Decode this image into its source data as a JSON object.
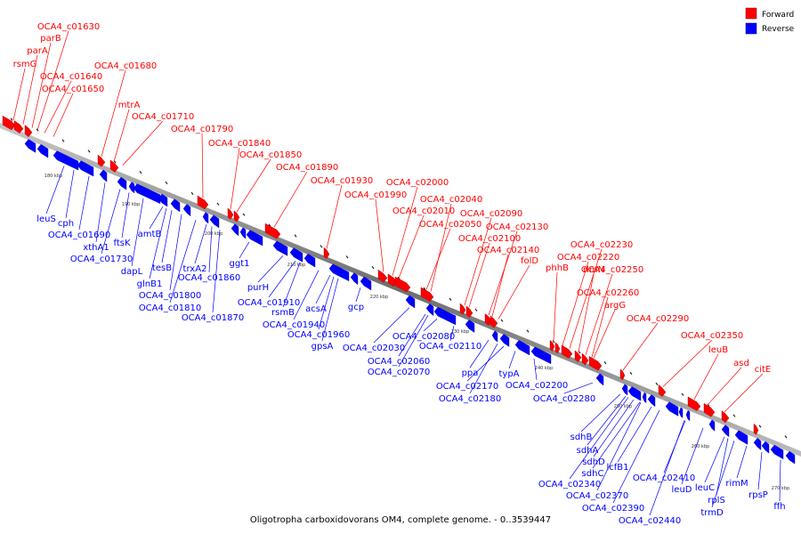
{
  "caption": "Oligotropha carboxidovorans OM4, complete genome. - 0..3539447",
  "colors": {
    "forward": "#ff0000",
    "reverse": "#0000ff",
    "backbone": "#808080"
  },
  "legend": [
    {
      "key": "forward",
      "label": "Forward",
      "color": "#ff0000"
    },
    {
      "key": "reverse",
      "label": "Reverse",
      "color": "#0000ff"
    }
  ],
  "ticks": [
    "180 kbp",
    "190 kbp",
    "200 kbp",
    "210 kbp",
    "220 kbp",
    "230 kbp",
    "240 kbp",
    "250 kbp",
    "260 kbp",
    "270 kbp"
  ],
  "forward_genes": [
    "OCA4_c01630",
    "parB",
    "parA",
    "rsmG",
    "OCA4_c01640",
    "OCA4_c01650",
    "OCA4_c01680",
    "mtrA",
    "OCA4_c01710",
    "OCA4_c01790",
    "OCA4_c01840",
    "OCA4_c01850",
    "OCA4_c01890",
    "OCA4_c01930",
    "OCA4_c02000",
    "OCA4_c01990",
    "OCA4_c02040",
    "OCA4_c02010",
    "OCA4_c02050",
    "OCA4_c02090",
    "OCA4_c02130",
    "OCA4_c02100",
    "OCA4_c02140",
    "folD",
    "phhB",
    "OCA4_c02230",
    "OCA4_c02220",
    "rlmN",
    "OCA4_c02250",
    "OCA4_c02260",
    "argG",
    "OCA4_c02290",
    "OCA4_c02350",
    "leuB",
    "asd",
    "citE"
  ],
  "reverse_genes": [
    "leuS",
    "cph",
    "OCA4_c01690",
    "xthA1",
    "ftsK",
    "OCA4_c01730",
    "amtB",
    "dapL",
    "tesB",
    "glnB1",
    "trxA2",
    "OCA4_c01860",
    "OCA4_c01800",
    "OCA4_c01810",
    "OCA4_c01870",
    "ggt1",
    "purH",
    "OCA4_c01910",
    "rsmB",
    "acsA",
    "OCA4_c01940",
    "gcp",
    "OCA4_c01960",
    "gpsA",
    "OCA4_c02030",
    "OCA4_c02080",
    "OCA4_c02060",
    "OCA4_c02110",
    "OCA4_c02070",
    "ppa",
    "typA",
    "OCA4_c02170",
    "OCA4_c02200",
    "OCA4_c02180",
    "OCA4_c02280",
    "sdhB",
    "sdhA",
    "sdhD",
    "sdhC",
    "lcfB1",
    "OCA4_c02340",
    "OCA4_c02410",
    "OCA4_c02370",
    "leuD",
    "leuC",
    "rimM",
    "OCA4_c02390",
    "rplS",
    "rpsP",
    "trmD",
    "OCA4_c02440",
    "ffh"
  ]
}
